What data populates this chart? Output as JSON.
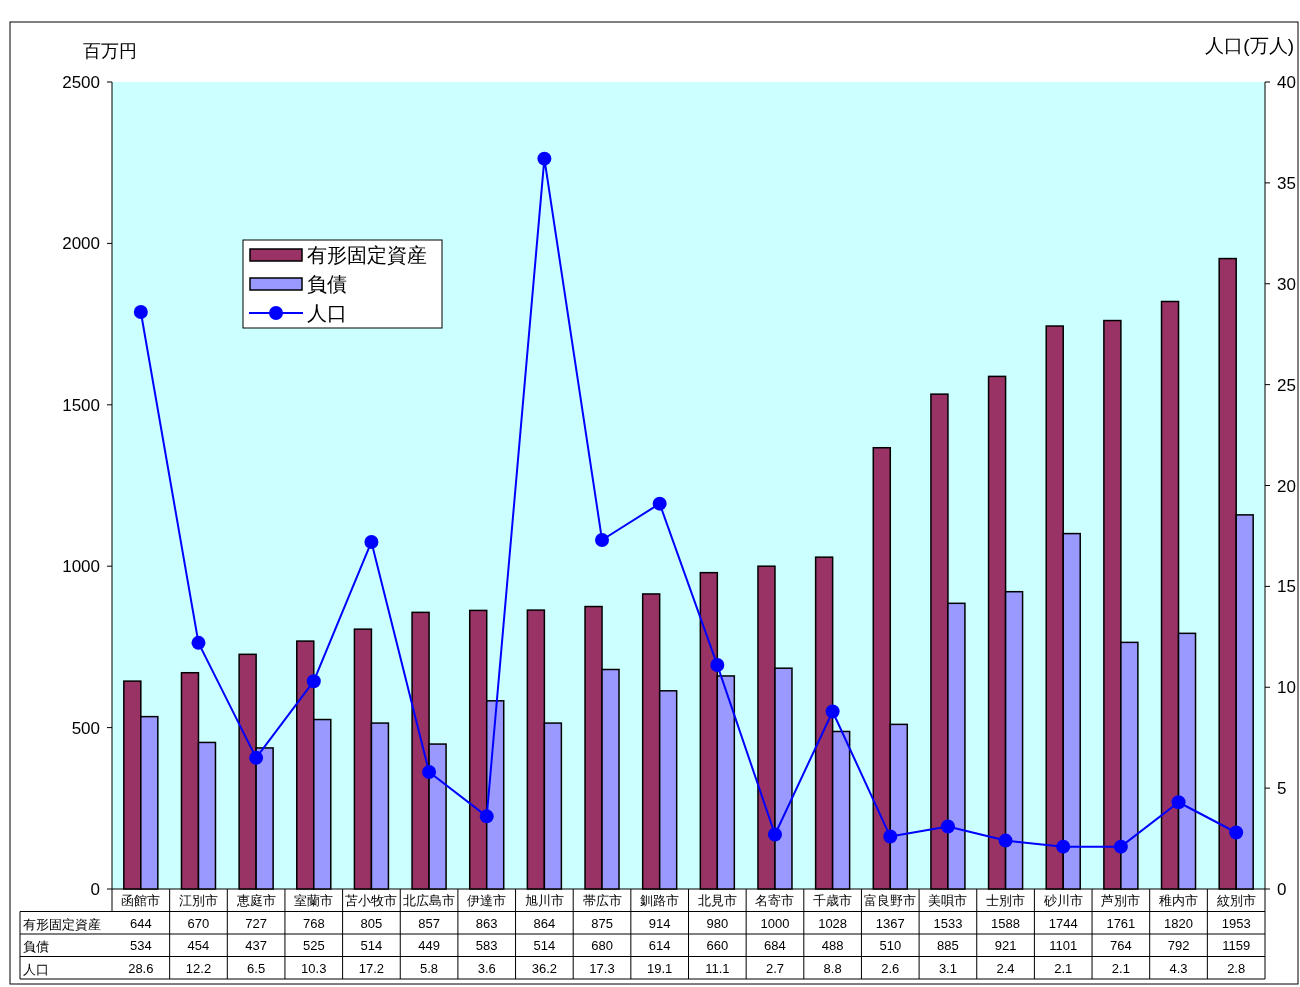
{
  "chart_data": {
    "type": "bar",
    "ylabel": "百万円",
    "y2label": "人口(万人)",
    "categories": [
      "函館市",
      "江別市",
      "恵庭市",
      "室蘭市",
      "苫小牧市",
      "北広島市",
      "伊達市",
      "旭川市",
      "帯広市",
      "釧路市",
      "北見市",
      "名寄市",
      "千歳市",
      "富良野市",
      "美唄市",
      "士別市",
      "砂川市",
      "芦別市",
      "稚内市",
      "紋別市"
    ],
    "series": [
      {
        "name": "有形固定資産",
        "color": "#993366",
        "values": [
          644,
          670,
          727,
          768,
          805,
          857,
          863,
          864,
          875,
          914,
          980,
          1000,
          1028,
          1367,
          1533,
          1588,
          1744,
          1761,
          1820,
          1953
        ]
      },
      {
        "name": "負債",
        "color": "#9999ff",
        "values": [
          534,
          454,
          437,
          525,
          514,
          449,
          583,
          514,
          680,
          614,
          660,
          684,
          488,
          510,
          885,
          921,
          1101,
          764,
          792,
          1159
        ]
      },
      {
        "name": "人口",
        "type": "line",
        "axis": "y2",
        "color": "#0000ff",
        "marker": "circle",
        "values": [
          28.6,
          12.2,
          6.5,
          10.3,
          17.2,
          5.8,
          3.6,
          36.2,
          17.3,
          19.1,
          11.1,
          2.7,
          8.8,
          2.6,
          3.1,
          2.4,
          2.1,
          2.1,
          4.3,
          2.8
        ]
      }
    ],
    "ylim": [
      0,
      2500
    ],
    "yticks": [
      0,
      500,
      1000,
      1500,
      2000,
      2500
    ],
    "y2lim": [
      0,
      40
    ],
    "y2ticks": [
      0,
      5,
      10,
      15,
      20,
      25,
      30,
      35,
      40
    ],
    "data_labels": true,
    "legend": "top left"
  }
}
